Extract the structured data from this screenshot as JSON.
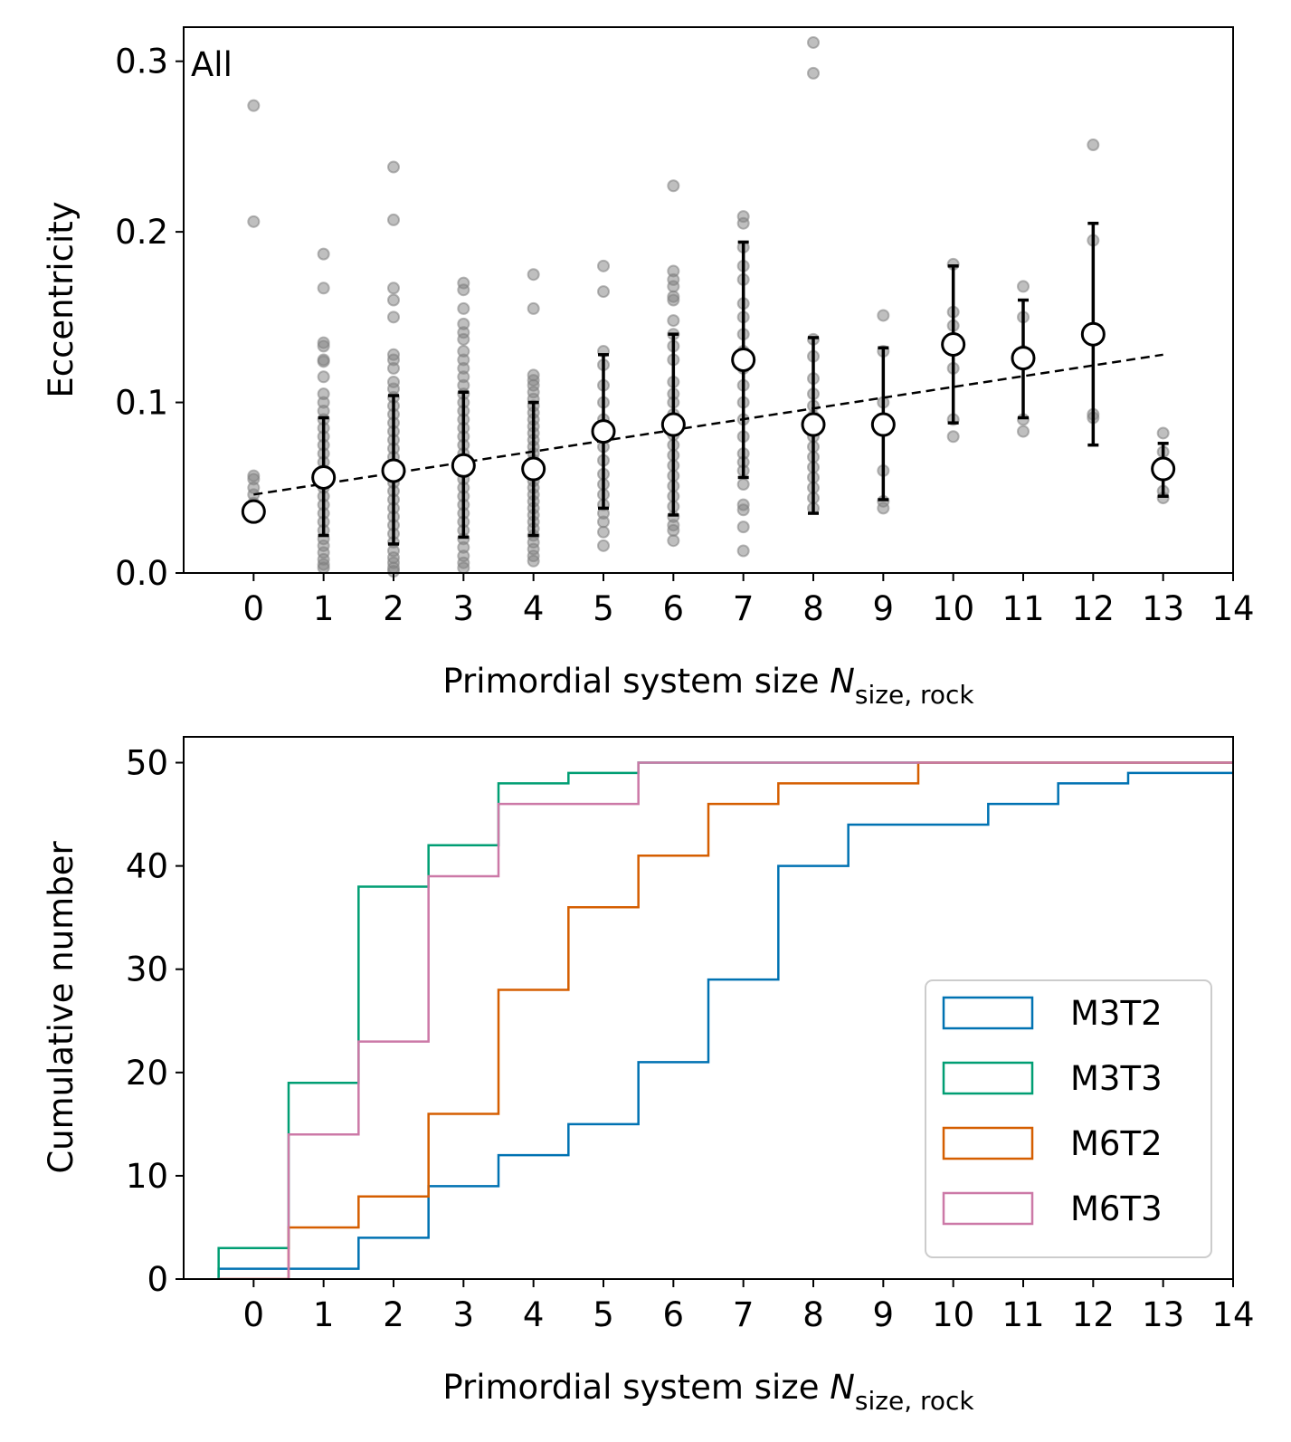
{
  "chart_data": [
    {
      "type": "scatter",
      "panel_label": "All",
      "xlabel": "Primordial system size ",
      "xlabel_symbol": "N",
      "xlabel_subscript": "size, rock",
      "ylabel": "Eccentricity",
      "xlim": [
        -1,
        14
      ],
      "ylim": [
        0,
        0.32
      ],
      "xticks": [
        0,
        1,
        2,
        3,
        4,
        5,
        6,
        7,
        8,
        9,
        10,
        11,
        12,
        13,
        14
      ],
      "xtick_labels": [
        "0",
        "1",
        "2",
        "3",
        "4",
        "5",
        "6",
        "7",
        "8",
        "9",
        "10",
        "11",
        "12",
        "13",
        "14"
      ],
      "yticks": [
        0.0,
        0.1,
        0.2,
        0.3
      ],
      "ytick_labels": [
        "0.0",
        "0.1",
        "0.2",
        "0.3"
      ],
      "colors": {
        "points": "#808080",
        "means": "#ffffff",
        "errorbars": "#000000",
        "fit": "#000000"
      },
      "fit_line": {
        "x": [
          0,
          13
        ],
        "y": [
          0.046,
          0.128
        ],
        "style": "dashed"
      },
      "means": [
        {
          "x": 0,
          "y": 0.036,
          "lo": null,
          "hi": null
        },
        {
          "x": 1,
          "y": 0.056,
          "lo": 0.022,
          "hi": 0.091
        },
        {
          "x": 2,
          "y": 0.06,
          "lo": 0.017,
          "hi": 0.104
        },
        {
          "x": 3,
          "y": 0.063,
          "lo": 0.021,
          "hi": 0.106
        },
        {
          "x": 4,
          "y": 0.061,
          "lo": 0.022,
          "hi": 0.1
        },
        {
          "x": 5,
          "y": 0.083,
          "lo": 0.038,
          "hi": 0.128
        },
        {
          "x": 6,
          "y": 0.087,
          "lo": 0.034,
          "hi": 0.14
        },
        {
          "x": 7,
          "y": 0.125,
          "lo": 0.056,
          "hi": 0.194
        },
        {
          "x": 8,
          "y": 0.087,
          "lo": 0.035,
          "hi": 0.138
        },
        {
          "x": 9,
          "y": 0.087,
          "lo": 0.043,
          "hi": 0.132
        },
        {
          "x": 10,
          "y": 0.134,
          "lo": 0.088,
          "hi": 0.18
        },
        {
          "x": 11,
          "y": 0.126,
          "lo": 0.091,
          "hi": 0.16
        },
        {
          "x": 12,
          "y": 0.14,
          "lo": 0.075,
          "hi": 0.205
        },
        {
          "x": 13,
          "y": 0.061,
          "lo": 0.045,
          "hi": 0.076
        }
      ],
      "points": [
        {
          "x": 0,
          "y": [
            0.274,
            0.206,
            0.057,
            0.055,
            0.05,
            0.046,
            0.041,
            0.038
          ]
        },
        {
          "x": 1,
          "y": [
            0.187,
            0.167,
            0.135,
            0.133,
            0.125,
            0.124,
            0.115,
            0.105,
            0.1,
            0.095,
            0.09,
            0.085,
            0.08,
            0.075,
            0.07,
            0.065,
            0.06,
            0.055,
            0.05,
            0.045,
            0.04,
            0.035,
            0.03,
            0.025,
            0.02,
            0.016,
            0.012,
            0.008,
            0.005,
            0.003
          ]
        },
        {
          "x": 2,
          "y": [
            0.238,
            0.207,
            0.167,
            0.16,
            0.15,
            0.128,
            0.125,
            0.12,
            0.112,
            0.108,
            0.103,
            0.098,
            0.093,
            0.088,
            0.083,
            0.078,
            0.073,
            0.068,
            0.063,
            0.058,
            0.053,
            0.048,
            0.043,
            0.038,
            0.033,
            0.028,
            0.023,
            0.018,
            0.013,
            0.009,
            0.006,
            0.003,
            0.001
          ]
        },
        {
          "x": 3,
          "y": [
            0.17,
            0.166,
            0.155,
            0.146,
            0.141,
            0.137,
            0.13,
            0.125,
            0.12,
            0.115,
            0.11,
            0.105,
            0.1,
            0.095,
            0.09,
            0.085,
            0.08,
            0.075,
            0.07,
            0.065,
            0.06,
            0.055,
            0.05,
            0.045,
            0.04,
            0.035,
            0.03,
            0.025,
            0.02,
            0.015,
            0.01,
            0.006,
            0.003
          ]
        },
        {
          "x": 4,
          "y": [
            0.175,
            0.155,
            0.116,
            0.113,
            0.11,
            0.106,
            0.102,
            0.098,
            0.094,
            0.09,
            0.086,
            0.082,
            0.078,
            0.074,
            0.07,
            0.066,
            0.062,
            0.058,
            0.054,
            0.05,
            0.046,
            0.042,
            0.038,
            0.034,
            0.03,
            0.026,
            0.022,
            0.018,
            0.014,
            0.01,
            0.007
          ]
        },
        {
          "x": 5,
          "y": [
            0.18,
            0.165,
            0.13,
            0.122,
            0.11,
            0.1,
            0.09,
            0.082,
            0.074,
            0.066,
            0.058,
            0.052,
            0.046,
            0.04,
            0.035,
            0.03,
            0.024,
            0.016
          ]
        },
        {
          "x": 6,
          "y": [
            0.227,
            0.177,
            0.172,
            0.168,
            0.162,
            0.16,
            0.148,
            0.14,
            0.133,
            0.125,
            0.112,
            0.105,
            0.1,
            0.093,
            0.087,
            0.081,
            0.075,
            0.069,
            0.063,
            0.057,
            0.051,
            0.045,
            0.039,
            0.033,
            0.028,
            0.025,
            0.019
          ]
        },
        {
          "x": 7,
          "y": [
            0.209,
            0.205,
            0.191,
            0.18,
            0.172,
            0.158,
            0.15,
            0.14,
            0.13,
            0.12,
            0.11,
            0.1,
            0.09,
            0.08,
            0.07,
            0.065,
            0.06,
            0.052,
            0.04,
            0.037,
            0.027,
            0.013
          ]
        },
        {
          "x": 8,
          "y": [
            0.311,
            0.293,
            0.137,
            0.127,
            0.114,
            0.105,
            0.098,
            0.092,
            0.086,
            0.08,
            0.074,
            0.068,
            0.062,
            0.056,
            0.05,
            0.044,
            0.038
          ]
        },
        {
          "x": 9,
          "y": [
            0.151,
            0.13,
            0.1,
            0.06,
            0.042,
            0.038
          ]
        },
        {
          "x": 10,
          "y": [
            0.181,
            0.153,
            0.145,
            0.12,
            0.09,
            0.08
          ]
        },
        {
          "x": 11,
          "y": [
            0.168,
            0.15,
            0.13,
            0.09,
            0.083
          ]
        },
        {
          "x": 12,
          "y": [
            0.251,
            0.195,
            0.141,
            0.093,
            0.091
          ]
        },
        {
          "x": 13,
          "y": [
            0.082,
            0.071,
            0.048,
            0.044
          ]
        }
      ]
    },
    {
      "type": "line",
      "style": "step",
      "xlabel": "Primordial system size ",
      "xlabel_symbol": "N",
      "xlabel_subscript": "size, rock",
      "ylabel": "Cumulative number",
      "xlim": [
        -1,
        14
      ],
      "ylim": [
        0,
        52.5
      ],
      "xticks": [
        0,
        1,
        2,
        3,
        4,
        5,
        6,
        7,
        8,
        9,
        10,
        11,
        12,
        13,
        14
      ],
      "xtick_labels": [
        "0",
        "1",
        "2",
        "3",
        "4",
        "5",
        "6",
        "7",
        "8",
        "9",
        "10",
        "11",
        "12",
        "13",
        "14"
      ],
      "yticks": [
        0,
        10,
        20,
        30,
        40,
        50
      ],
      "ytick_labels": [
        "0",
        "10",
        "20",
        "30",
        "40",
        "50"
      ],
      "bin_edges": [
        -0.5,
        0.5,
        1.5,
        2.5,
        3.5,
        4.5,
        5.5,
        6.5,
        7.5,
        8.5,
        9.5,
        10.5,
        11.5,
        12.5,
        13.5,
        14.5
      ],
      "legend_position": "bottom-right",
      "series": [
        {
          "name": "M3T2",
          "color": "#0072B2",
          "values": [
            1,
            1,
            4,
            9,
            12,
            15,
            21,
            29,
            40,
            44,
            44,
            46,
            48,
            49,
            49
          ]
        },
        {
          "name": "M3T3",
          "color": "#009E73",
          "values": [
            3,
            19,
            38,
            42,
            48,
            49,
            50,
            50,
            50,
            50,
            50,
            50,
            50,
            50,
            50
          ]
        },
        {
          "name": "M6T2",
          "color": "#D55E00",
          "values": [
            0,
            5,
            8,
            16,
            28,
            36,
            41,
            46,
            48,
            48,
            50,
            50,
            50,
            50,
            50
          ]
        },
        {
          "name": "M6T3",
          "color": "#CC79A7",
          "values": [
            0,
            14,
            23,
            39,
            46,
            46,
            50,
            50,
            50,
            50,
            50,
            50,
            50,
            50,
            50
          ]
        }
      ]
    }
  ]
}
